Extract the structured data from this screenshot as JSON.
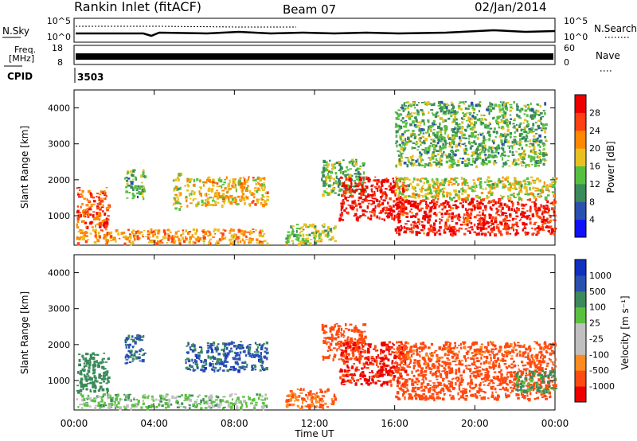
{
  "header": {
    "title": "Rankin Inlet (fitACF)",
    "beam": "Beam 07",
    "date": "02/Jan/2014"
  },
  "noise_panel": {
    "left_label": "N.Sky",
    "left_ticks": [
      "10^5",
      "10^0"
    ],
    "right_label": "N.Search",
    "right_ticks": [
      "10^5",
      "10^0"
    ]
  },
  "freq_panel": {
    "left_label_1": "Freq.",
    "left_label_2": "[MHz]",
    "left_ticks": [
      "18",
      "8"
    ],
    "right_label": "Nave",
    "right_ticks": [
      "60",
      "0"
    ]
  },
  "cpid": {
    "label": "CPID",
    "value": "3503"
  },
  "x_axis": {
    "label": "Time UT",
    "ticks": [
      "00:00",
      "04:00",
      "08:00",
      "12:00",
      "16:00",
      "20:00",
      "00:00"
    ]
  },
  "colors": {
    "power": [
      "#1010ff",
      "#2a50b0",
      "#3a8a5a",
      "#55c040",
      "#e8c020",
      "#ff8800",
      "#ff4010",
      "#ee0000"
    ],
    "velocity": [
      "#ee0000",
      "#ff4a10",
      "#ff8a20",
      "#c0c0c0",
      "#c0c0c0",
      "#5ac040",
      "#3a8a5a",
      "#2a50b0",
      "#1030c0"
    ]
  },
  "chart_data": [
    {
      "type": "heatmap",
      "name": "power",
      "xlabel": "Time UT",
      "ylabel": "Slant Range [km]",
      "xlim": [
        0,
        24
      ],
      "ylim": [
        180,
        4500
      ],
      "yticks": [
        "1000",
        "2000",
        "3000",
        "4000"
      ],
      "colorbar_label": "Power [dB]",
      "colorbar_ticks": [
        "4",
        "8",
        "12",
        "16",
        "20",
        "24",
        "28"
      ],
      "blobs": [
        {
          "t0": 0.1,
          "t1": 1.7,
          "r0": 700,
          "r1": 1800,
          "power": 24
        },
        {
          "t0": 0.1,
          "t1": 9.6,
          "r0": 250,
          "r1": 650,
          "power": 20
        },
        {
          "t0": 2.5,
          "t1": 3.5,
          "r0": 1500,
          "r1": 2300,
          "power": 12
        },
        {
          "t0": 4.9,
          "t1": 5.3,
          "r0": 1200,
          "r1": 2200,
          "power": 16
        },
        {
          "t0": 5.5,
          "t1": 9.6,
          "r0": 1300,
          "r1": 2100,
          "power": 18
        },
        {
          "t0": 10.5,
          "t1": 13.0,
          "r0": 250,
          "r1": 800,
          "power": 14
        },
        {
          "t0": 12.3,
          "t1": 14.5,
          "r0": 1600,
          "r1": 2600,
          "power": 12
        },
        {
          "t0": 13.2,
          "t1": 16.5,
          "r0": 900,
          "r1": 2100,
          "power": 28
        },
        {
          "t0": 16.0,
          "t1": 24.0,
          "r0": 500,
          "r1": 1500,
          "power": 27
        },
        {
          "t0": 16.0,
          "t1": 24.0,
          "r0": 1500,
          "r1": 2100,
          "power": 16
        },
        {
          "t0": 16.0,
          "t1": 23.5,
          "r0": 2400,
          "r1": 4200,
          "power": 12
        }
      ]
    },
    {
      "type": "heatmap",
      "name": "velocity",
      "xlabel": "Time UT",
      "ylabel": "Slant Range [km]",
      "xlim": [
        0,
        24
      ],
      "ylim": [
        180,
        4500
      ],
      "yticks": [
        "1000",
        "2000",
        "3000",
        "4000"
      ],
      "colorbar_label": "Velocity [m s⁻¹]",
      "colorbar_ticks": [
        "1000",
        "500",
        "100",
        "25",
        "-25",
        "-100",
        "-500",
        "-1000"
      ],
      "blobs": [
        {
          "t0": 0.1,
          "t1": 1.7,
          "r0": 700,
          "r1": 1800,
          "velocity": 200
        },
        {
          "t0": 0.1,
          "t1": 9.6,
          "r0": 250,
          "r1": 650,
          "velocity": 50
        },
        {
          "t0": 2.5,
          "t1": 3.5,
          "r0": 1500,
          "r1": 2300,
          "velocity": 600
        },
        {
          "t0": 5.5,
          "t1": 9.6,
          "r0": 1300,
          "r1": 2100,
          "velocity": 700
        },
        {
          "t0": 10.5,
          "t1": 13.0,
          "r0": 250,
          "r1": 800,
          "velocity": -100
        },
        {
          "t0": 12.3,
          "t1": 14.5,
          "r0": 1600,
          "r1": 2600,
          "velocity": -300
        },
        {
          "t0": 13.2,
          "t1": 16.5,
          "r0": 900,
          "r1": 2100,
          "velocity": -600
        },
        {
          "t0": 16.0,
          "t1": 24.0,
          "r0": 500,
          "r1": 1500,
          "velocity": -250
        },
        {
          "t0": 16.0,
          "t1": 24.0,
          "r0": 1500,
          "r1": 2100,
          "velocity": -150
        },
        {
          "t0": 22.0,
          "t1": 24.0,
          "r0": 700,
          "r1": 1300,
          "velocity": 120
        }
      ]
    }
  ]
}
